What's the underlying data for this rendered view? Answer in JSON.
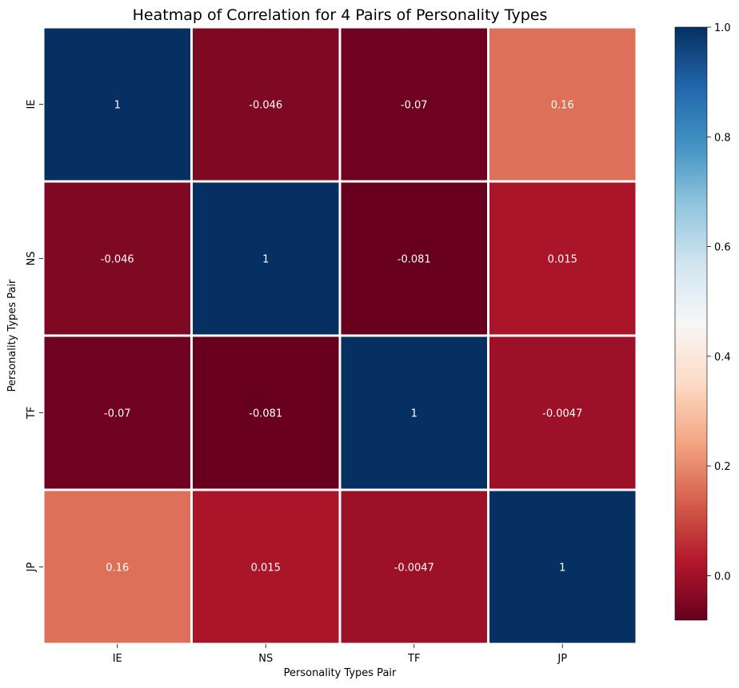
{
  "chart_data": {
    "type": "heatmap",
    "title": "Heatmap of Correlation for 4 Pairs of Personality Types",
    "xlabel": "Personality Types Pair",
    "ylabel": "Personality Types Pair",
    "x_categories": [
      "IE",
      "NS",
      "TF",
      "JP"
    ],
    "y_categories": [
      "IE",
      "NS",
      "TF",
      "JP"
    ],
    "values": [
      [
        1,
        -0.046,
        -0.07,
        0.16
      ],
      [
        -0.046,
        1,
        -0.081,
        0.015
      ],
      [
        -0.07,
        -0.081,
        1,
        -0.0047
      ],
      [
        0.16,
        0.015,
        -0.0047,
        1
      ]
    ],
    "cell_labels": [
      [
        "1",
        "-0.046",
        "-0.07",
        "0.16"
      ],
      [
        "-0.046",
        "1",
        "-0.081",
        "0.015"
      ],
      [
        "-0.07",
        "-0.081",
        "1",
        "-0.0047"
      ],
      [
        "0.16",
        "0.015",
        "-0.0047",
        "1"
      ]
    ],
    "colorbar": {
      "min": -0.081,
      "max": 1.0,
      "ticks": [
        0.0,
        0.2,
        0.4,
        0.6,
        0.8,
        1.0
      ],
      "tick_labels": [
        "0.0",
        "0.2",
        "0.4",
        "0.6",
        "0.8",
        "1.0"
      ],
      "colormap": "RdBu",
      "colormap_stops": [
        "#67001f",
        "#b2182b",
        "#d6604d",
        "#f4a582",
        "#fddbc7",
        "#f7f7f7",
        "#d1e5f0",
        "#92c5de",
        "#4393c3",
        "#2166ac",
        "#053061"
      ]
    },
    "cell_separator_color": "#ffffff",
    "annotation_color": "#ffffff"
  }
}
